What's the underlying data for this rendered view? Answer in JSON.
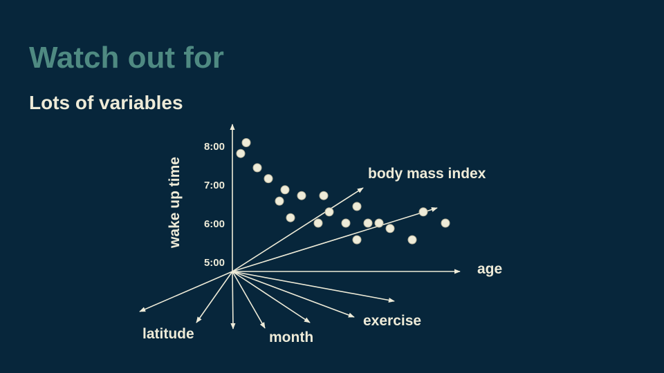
{
  "slide": {
    "title": "Watch out for",
    "subtitle": "Lots of variables"
  },
  "diagram": {
    "type": "multi-axis scatter",
    "y_axis": {
      "label": "wake up time",
      "ticks": [
        "8:00",
        "7:00",
        "6:00",
        "5:00"
      ]
    },
    "axis_labels": {
      "body_mass_index": "body mass index",
      "age": "age",
      "exercise": "exercise",
      "month": "month",
      "latitude": "latitude"
    },
    "colors": {
      "background": "#07263b",
      "title": "#4f8a82",
      "foreground": "#eeebd8"
    }
  },
  "chart_data": {
    "type": "scatter",
    "xlabel": "",
    "ylabel": "wake up time",
    "y_ticks": [
      "5:00",
      "6:00",
      "7:00",
      "8:00"
    ],
    "ylim": [
      4.8,
      8.3
    ],
    "x_unlabeled": true,
    "xlim": [
      0,
      20
    ],
    "points": [
      {
        "x": 0.75,
        "y": 7.8
      },
      {
        "x": 1.25,
        "y": 8.08
      },
      {
        "x": 2.25,
        "y": 7.43
      },
      {
        "x": 3.25,
        "y": 7.15
      },
      {
        "x": 4.25,
        "y": 6.57
      },
      {
        "x": 4.75,
        "y": 6.86
      },
      {
        "x": 5.25,
        "y": 6.14
      },
      {
        "x": 6.25,
        "y": 6.71
      },
      {
        "x": 7.75,
        "y": 6.0
      },
      {
        "x": 8.25,
        "y": 6.71
      },
      {
        "x": 8.75,
        "y": 6.29
      },
      {
        "x": 10.25,
        "y": 6.0
      },
      {
        "x": 11.25,
        "y": 6.43
      },
      {
        "x": 11.25,
        "y": 5.57
      },
      {
        "x": 12.25,
        "y": 6.0
      },
      {
        "x": 13.25,
        "y": 6.0
      },
      {
        "x": 14.25,
        "y": 5.86
      },
      {
        "x": 16.25,
        "y": 5.57
      },
      {
        "x": 17.25,
        "y": 6.29
      },
      {
        "x": 19.25,
        "y": 6.0
      }
    ]
  }
}
